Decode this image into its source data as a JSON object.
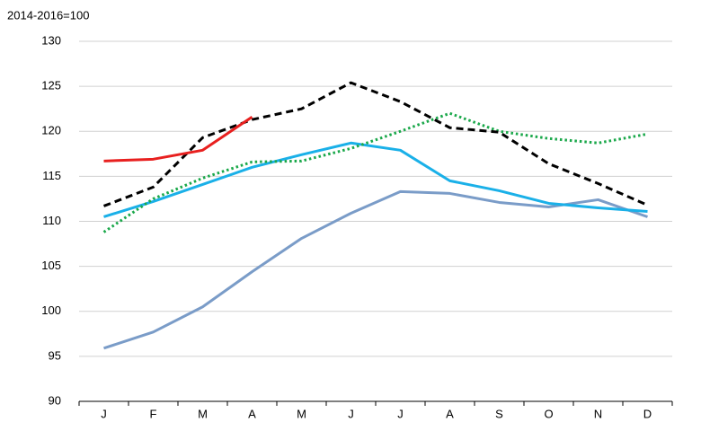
{
  "chart_data": {
    "type": "line",
    "subtitle": "2014-2016=100",
    "categories": [
      "J",
      "F",
      "M",
      "A",
      "M",
      "J",
      "J",
      "A",
      "S",
      "O",
      "N",
      "D"
    ],
    "series": [
      {
        "color": "#7a9cc8",
        "style": "solid",
        "values": [
          95.9,
          97.7,
          100.5,
          104.4,
          108.1,
          110.9,
          113.3,
          113.1,
          112.1,
          111.6,
          112.4,
          110.5
        ]
      },
      {
        "color": "#1ab0e8",
        "style": "solid",
        "values": [
          110.5,
          112.2,
          114.1,
          116.0,
          117.4,
          118.7,
          117.9,
          114.5,
          113.4,
          112.0,
          111.5,
          111.1
        ]
      },
      {
        "color": "#1aa84a",
        "style": "dotted",
        "values": [
          108.8,
          112.5,
          114.8,
          116.6,
          116.7,
          118.1,
          120.0,
          122.0,
          120.0,
          119.2,
          118.7,
          119.7
        ]
      },
      {
        "color": "#000000",
        "style": "dashed",
        "values": [
          111.7,
          113.8,
          119.3,
          121.3,
          122.5,
          125.4,
          123.3,
          120.4,
          119.9,
          116.4,
          114.2,
          111.8
        ]
      },
      {
        "color": "#e8201f",
        "style": "solid",
        "values": [
          116.7,
          116.9,
          117.9,
          121.6,
          null,
          null,
          null,
          null,
          null,
          null,
          null,
          null
        ]
      }
    ],
    "ylim": [
      90,
      130
    ],
    "yticks": [
      90,
      95,
      100,
      105,
      110,
      115,
      120,
      125,
      130
    ],
    "grid": true
  }
}
